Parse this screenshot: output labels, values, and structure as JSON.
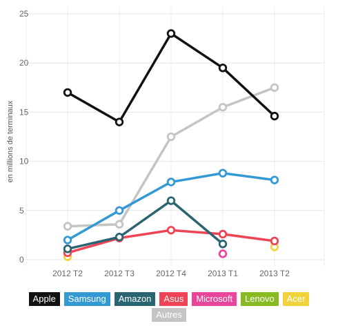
{
  "chart_data": {
    "type": "line",
    "categories": [
      "2012 T2",
      "2012 T3",
      "2012 T4",
      "2013 T1",
      "2013 T2"
    ],
    "ylabel": "en millions de terminaux",
    "xlabel": "",
    "ylim": [
      0,
      25
    ],
    "yticks": [
      "0",
      "5",
      "10",
      "15",
      "20",
      "25"
    ],
    "grid": true,
    "legend_position": "bottom",
    "series": [
      {
        "name": "Apple",
        "color": "#111111",
        "values": [
          17.0,
          14.0,
          23.0,
          19.5,
          14.6
        ]
      },
      {
        "name": "Samsung",
        "color": "#3399d4",
        "values": [
          2.0,
          5.0,
          7.9,
          8.8,
          8.1
        ]
      },
      {
        "name": "Amazon",
        "color": "#2a6470",
        "values": [
          1.1,
          2.3,
          6.0,
          1.6,
          null
        ]
      },
      {
        "name": "Asus",
        "color": "#ee4455",
        "values": [
          0.7,
          2.2,
          3.0,
          2.6,
          1.9
        ]
      },
      {
        "name": "Microsoft",
        "color": "#e8459b",
        "values": [
          null,
          null,
          null,
          0.6,
          null
        ]
      },
      {
        "name": "Lenovo",
        "color": "#88bb22",
        "values": [
          null,
          null,
          null,
          null,
          null
        ]
      },
      {
        "name": "Acer",
        "color": "#f0d23c",
        "values": [
          0.3,
          null,
          null,
          null,
          1.3
        ]
      },
      {
        "name": "Autres",
        "color": "#c4c4c4",
        "values": [
          3.4,
          3.6,
          12.5,
          15.5,
          17.5
        ]
      }
    ]
  }
}
